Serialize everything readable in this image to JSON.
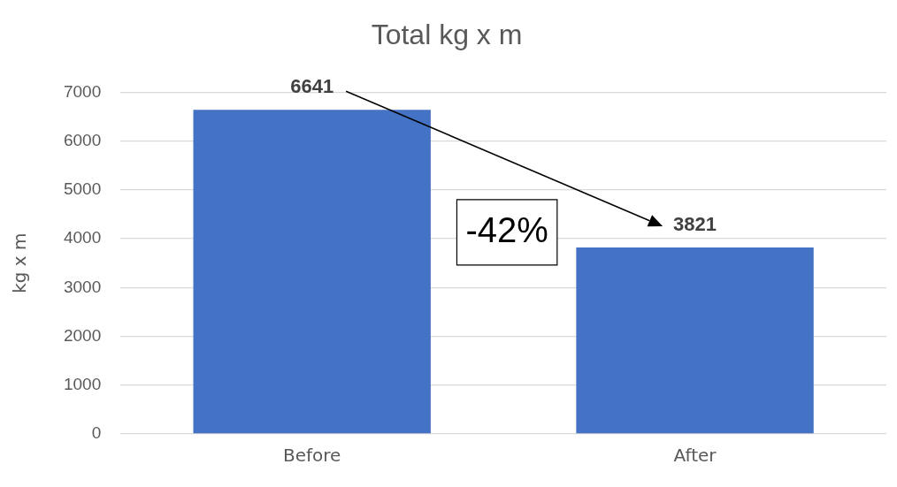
{
  "chart_data": {
    "type": "bar",
    "title": "Total kg x m",
    "ylabel": "kg x m",
    "categories": [
      "Before",
      "After"
    ],
    "values": [
      6641,
      3821
    ],
    "color": "#4472c4",
    "ylim": [
      0,
      7000
    ],
    "yticks": [
      0,
      1000,
      2000,
      3000,
      4000,
      5000,
      6000,
      7000
    ],
    "grid": "y",
    "legend": false,
    "data_labels": true,
    "annotations": [
      "-42%"
    ]
  }
}
